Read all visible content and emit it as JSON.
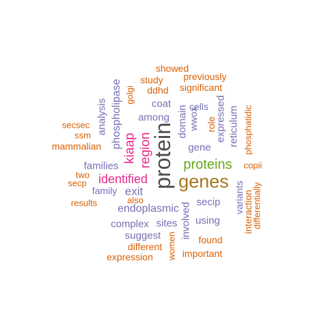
{
  "colors": {
    "orange": "#d95f02",
    "purple": "#7570b3",
    "magenta": "#e7298a",
    "green": "#66a61e",
    "brown": "#a6761d",
    "dark": "#4d4d4d"
  },
  "words": [
    {
      "text": "showed",
      "color": "orange"
    },
    {
      "text": "previously",
      "color": "orange"
    },
    {
      "text": "study",
      "color": "orange"
    },
    {
      "text": "significant",
      "color": "orange"
    },
    {
      "text": "ddhd",
      "color": "orange"
    },
    {
      "text": "golgi",
      "color": "orange"
    },
    {
      "text": "phospholipase",
      "color": "purple"
    },
    {
      "text": "analysis",
      "color": "purple"
    },
    {
      "text": "coat",
      "color": "purple"
    },
    {
      "text": "cells",
      "color": "purple"
    },
    {
      "text": "domain",
      "color": "purple"
    },
    {
      "text": "wwox",
      "color": "purple"
    },
    {
      "text": "expressed",
      "color": "purple"
    },
    {
      "text": "reticulum",
      "color": "purple"
    },
    {
      "text": "role",
      "color": "orange"
    },
    {
      "text": "phosphatidic",
      "color": "orange"
    },
    {
      "text": "secsec",
      "color": "orange"
    },
    {
      "text": "among",
      "color": "purple"
    },
    {
      "text": "ssm",
      "color": "orange"
    },
    {
      "text": "mammalian",
      "color": "orange"
    },
    {
      "text": "kiaap",
      "color": "magenta"
    },
    {
      "text": "region",
      "color": "magenta"
    },
    {
      "text": "protein",
      "color": "dark"
    },
    {
      "text": "gene",
      "color": "purple"
    },
    {
      "text": "proteins",
      "color": "green"
    },
    {
      "text": "copii",
      "color": "orange"
    },
    {
      "text": "families",
      "color": "purple"
    },
    {
      "text": "two",
      "color": "orange"
    },
    {
      "text": "secp",
      "color": "orange"
    },
    {
      "text": "identified",
      "color": "magenta"
    },
    {
      "text": "genes",
      "color": "brown"
    },
    {
      "text": "variants",
      "color": "purple"
    },
    {
      "text": "interaction",
      "color": "orange"
    },
    {
      "text": "differentially",
      "color": "orange"
    },
    {
      "text": "family",
      "color": "purple"
    },
    {
      "text": "exit",
      "color": "purple"
    },
    {
      "text": "results",
      "color": "orange"
    },
    {
      "text": "also",
      "color": "orange"
    },
    {
      "text": "secip",
      "color": "purple"
    },
    {
      "text": "endoplasmic",
      "color": "purple"
    },
    {
      "text": "involved",
      "color": "purple"
    },
    {
      "text": "using",
      "color": "purple"
    },
    {
      "text": "complex",
      "color": "purple"
    },
    {
      "text": "sites",
      "color": "purple"
    },
    {
      "text": "suggest",
      "color": "purple"
    },
    {
      "text": "women",
      "color": "orange"
    },
    {
      "text": "found",
      "color": "orange"
    },
    {
      "text": "different",
      "color": "orange"
    },
    {
      "text": "expression",
      "color": "orange"
    },
    {
      "text": "important",
      "color": "orange"
    }
  ]
}
